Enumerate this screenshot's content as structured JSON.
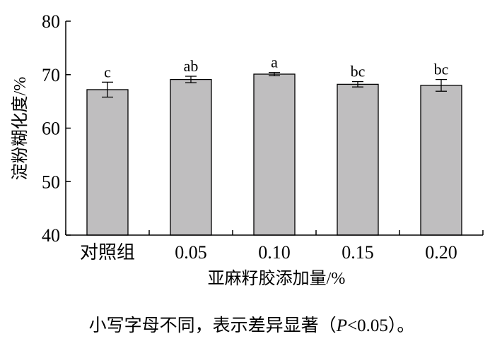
{
  "chart_data": {
    "type": "bar",
    "title": "",
    "xlabel": "亚麻籽胶添加量/%",
    "ylabel": "淀粉糊化度/%",
    "ylim": [
      40,
      80
    ],
    "yticks": [
      40,
      50,
      60,
      70,
      80
    ],
    "categories": [
      "对照组",
      "0.05",
      "0.10",
      "0.15",
      "0.20"
    ],
    "values": [
      67.2,
      69.1,
      70.1,
      68.2,
      68.0
    ],
    "errors": [
      1.4,
      0.6,
      0.3,
      0.5,
      1.1
    ],
    "significance_labels": [
      "c",
      "ab",
      "a",
      "bc",
      "bc"
    ],
    "bar_color": "#bfbebf",
    "grid": false,
    "legend": "none"
  },
  "footnote": {
    "prefix": "小写字母不同，表示差异显著（",
    "p_symbol": "P",
    "suffix": "<0.05）。"
  }
}
